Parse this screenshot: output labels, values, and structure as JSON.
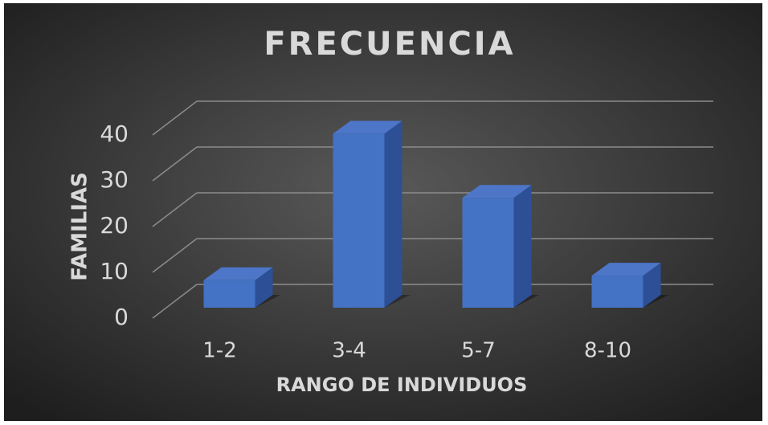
{
  "chart_data": {
    "type": "bar3d",
    "title": "FRECUENCIA",
    "x_label": "RANGO DE INDIVIDUOS",
    "y_label": "FAMILIAS",
    "categories": [
      "1-2",
      "3-4",
      "5-7",
      "8-10"
    ],
    "values": [
      6,
      38,
      24,
      7
    ],
    "color": "#4472c4",
    "ylim": [
      0,
      40
    ],
    "yticks": [
      0,
      10,
      20,
      30,
      40
    ],
    "grid": true
  }
}
